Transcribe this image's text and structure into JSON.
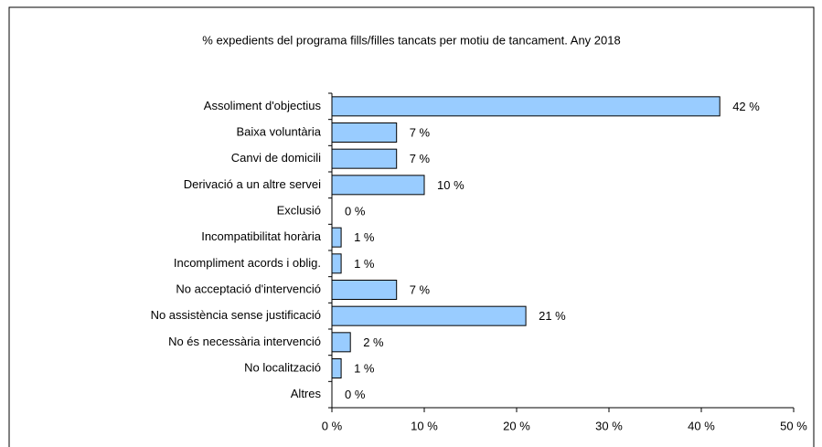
{
  "chart_data": {
    "type": "bar",
    "orientation": "horizontal",
    "title": "%  expedients del programa  fills/filles tancats per motiu de tancament. Any 2018",
    "categories": [
      "Assoliment d'objectius",
      "Baixa voluntària",
      "Canvi de domicili",
      "Derivació a un altre servei",
      "Exclusió",
      "Incompatibilitat horària",
      "Incompliment acords i oblig.",
      "No acceptació d'intervenció",
      "No assistència sense justificació",
      "No és necessària intervenció",
      "No localització",
      "Altres"
    ],
    "values": [
      42,
      7,
      7,
      10,
      0,
      1,
      1,
      7,
      21,
      2,
      1,
      0
    ],
    "value_labels": [
      "42 %",
      "7 %",
      "7 %",
      "10 %",
      "0 %",
      "1 %",
      "1 %",
      "7 %",
      "21 %",
      "2 %",
      "1 %",
      "0 %"
    ],
    "color": "#99ccff",
    "xlim": [
      0,
      50
    ],
    "xticks": [
      {
        "value": 0,
        "label": "0 %"
      },
      {
        "value": 10,
        "label": "10 %"
      },
      {
        "value": 20,
        "label": "20 %"
      },
      {
        "value": 30,
        "label": "30 %"
      },
      {
        "value": 40,
        "label": "40 %"
      },
      {
        "value": 50,
        "label": "50 %"
      }
    ],
    "grid": false
  }
}
